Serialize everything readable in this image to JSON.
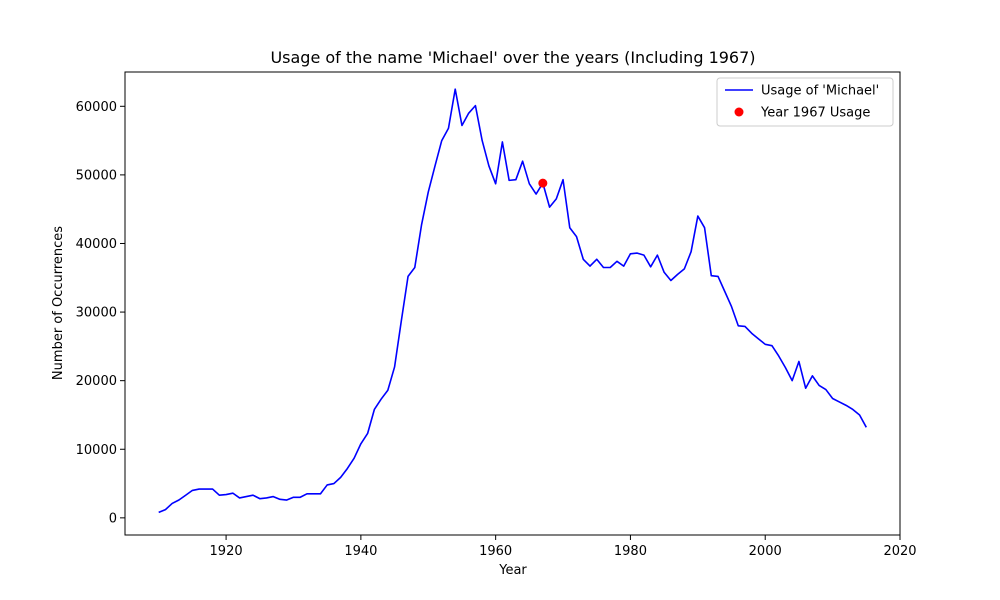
{
  "chart_data": {
    "type": "line",
    "title": "Usage of the name 'Michael' over the years (Including 1967)",
    "xlabel": "Year",
    "ylabel": "Number of Occurrences",
    "xlim": [
      1905,
      2020
    ],
    "ylim": [
      -2500,
      65000
    ],
    "xticks": [
      1920,
      1940,
      1960,
      1980,
      2000,
      2020
    ],
    "yticks": [
      0,
      10000,
      20000,
      30000,
      40000,
      50000,
      60000
    ],
    "grid": false,
    "legend_position": "top-right",
    "colors": {
      "line": "#0000ff",
      "highlight": "#ff0000"
    },
    "series": [
      {
        "name": "Usage of 'Michael'",
        "kind": "line",
        "x": [
          1910,
          1911,
          1912,
          1913,
          1914,
          1915,
          1916,
          1917,
          1918,
          1919,
          1920,
          1921,
          1922,
          1923,
          1924,
          1925,
          1926,
          1927,
          1928,
          1929,
          1930,
          1931,
          1932,
          1933,
          1934,
          1935,
          1936,
          1937,
          1938,
          1939,
          1940,
          1941,
          1942,
          1943,
          1944,
          1945,
          1946,
          1947,
          1948,
          1949,
          1950,
          1951,
          1952,
          1953,
          1954,
          1955,
          1956,
          1957,
          1958,
          1959,
          1960,
          1961,
          1962,
          1963,
          1964,
          1965,
          1966,
          1967,
          1968,
          1969,
          1970,
          1971,
          1972,
          1973,
          1974,
          1975,
          1976,
          1977,
          1978,
          1979,
          1980,
          1981,
          1982,
          1983,
          1984,
          1985,
          1986,
          1987,
          1988,
          1989,
          1990,
          1991,
          1992,
          1993,
          1994,
          1995,
          1996,
          1997,
          1998,
          1999,
          2000,
          2001,
          2002,
          2003,
          2004,
          2005,
          2006,
          2007,
          2008,
          2009,
          2010,
          2011,
          2012,
          2013,
          2014,
          2015
        ],
        "y": [
          800,
          1200,
          2100,
          2600,
          3300,
          4000,
          4200,
          4200,
          4200,
          3300,
          3400,
          3600,
          2900,
          3100,
          3300,
          2800,
          2900,
          3100,
          2700,
          2600,
          3000,
          3000,
          3500,
          3500,
          3500,
          4800,
          5000,
          5900,
          7200,
          8700,
          10800,
          12300,
          15800,
          17300,
          18600,
          22000,
          28700,
          35200,
          36500,
          42700,
          47500,
          51300,
          55000,
          56800,
          62500,
          57200,
          59000,
          60100,
          55000,
          51300,
          48700,
          54800,
          49200,
          49300,
          52000,
          48700,
          47200,
          48800,
          45300,
          46500,
          49300,
          42300,
          41000,
          37700,
          36700,
          37700,
          36500,
          36500,
          37400,
          36700,
          38500,
          38600,
          38300,
          36600,
          38300,
          35800,
          34600,
          35500,
          36300,
          38800,
          44000,
          42300,
          35300,
          35200,
          33000,
          30800,
          28000,
          27900,
          26900,
          26100,
          25300,
          25100,
          23600,
          21900,
          20000,
          22800,
          18900,
          20700,
          19300,
          18700,
          17400,
          16900,
          16400,
          15800,
          15000,
          13200
        ]
      },
      {
        "name": "Year 1967 Usage",
        "kind": "scatter",
        "x": [
          1967
        ],
        "y": [
          48800
        ]
      }
    ]
  }
}
